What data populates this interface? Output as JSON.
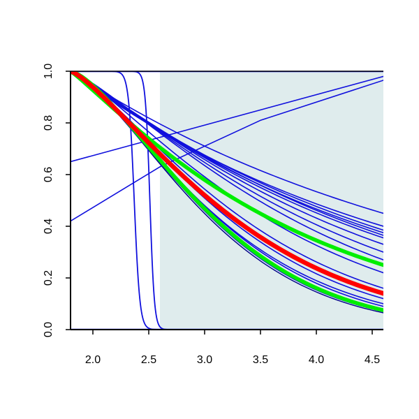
{
  "chart_data": {
    "type": "line",
    "title": "",
    "xlabel": "",
    "ylabel": "",
    "xlim": [
      1.8,
      4.6
    ],
    "ylim": [
      0.0,
      1.0
    ],
    "x_ticks": [
      2.0,
      2.5,
      3.0,
      3.5,
      4.0,
      4.5
    ],
    "x_tick_labels": [
      "2.0",
      "2.5",
      "3.0",
      "3.5",
      "4.0",
      "4.5"
    ],
    "y_ticks": [
      0.0,
      0.2,
      0.4,
      0.6,
      0.8,
      1.0
    ],
    "y_tick_labels": [
      "0.0",
      "0.2",
      "0.4",
      "0.6",
      "0.8",
      "1.0"
    ],
    "grid": false,
    "legend": "none",
    "shaded_region": {
      "x_from": 2.6,
      "x_to": 4.6,
      "color": "#dfeced"
    },
    "colors": {
      "curves": "#1010dd",
      "highlight": "#ff0000",
      "band": "#00ee00",
      "axes": "#000000"
    },
    "series": [
      {
        "kind": "decay",
        "end": 0.45,
        "shape": 1.0,
        "color": "#1010dd",
        "width": 1.6
      },
      {
        "kind": "decay",
        "end": 0.4,
        "shape": 1.0,
        "color": "#1010dd",
        "width": 1.6
      },
      {
        "kind": "decay",
        "end": 0.385,
        "shape": 1.05,
        "color": "#1010dd",
        "width": 1.6
      },
      {
        "kind": "decay",
        "end": 0.375,
        "shape": 1.05,
        "color": "#1010dd",
        "width": 1.6
      },
      {
        "kind": "decay",
        "end": 0.365,
        "shape": 1.1,
        "color": "#1010dd",
        "width": 1.6
      },
      {
        "kind": "decay",
        "end": 0.355,
        "shape": 1.1,
        "color": "#1010dd",
        "width": 1.6
      },
      {
        "kind": "decay",
        "end": 0.33,
        "shape": 1.15,
        "color": "#1010dd",
        "width": 1.6
      },
      {
        "kind": "decay",
        "end": 0.3,
        "shape": 1.2,
        "color": "#1010dd",
        "width": 1.6
      },
      {
        "kind": "decay",
        "end": 0.27,
        "shape": 1.25,
        "color": "#1010dd",
        "width": 1.6
      },
      {
        "kind": "decay",
        "end": 0.22,
        "shape": 1.25,
        "color": "#1010dd",
        "width": 1.6
      },
      {
        "kind": "decay",
        "end": 0.16,
        "shape": 1.3,
        "color": "#1010dd",
        "width": 1.6
      },
      {
        "kind": "decay",
        "end": 0.14,
        "shape": 1.3,
        "color": "#1010dd",
        "width": 1.6
      },
      {
        "kind": "decay",
        "end": 0.12,
        "shape": 1.35,
        "color": "#1010dd",
        "width": 1.6
      },
      {
        "kind": "decay",
        "end": 0.1,
        "shape": 1.35,
        "color": "#1010dd",
        "width": 1.6
      },
      {
        "kind": "decay",
        "end": 0.09,
        "shape": 1.4,
        "color": "#1010dd",
        "width": 1.6
      },
      {
        "kind": "decay",
        "end": 0.08,
        "shape": 1.4,
        "color": "#1010dd",
        "width": 1.6
      },
      {
        "kind": "decay",
        "end": 0.07,
        "shape": 1.45,
        "color": "#1010dd",
        "width": 1.6
      },
      {
        "kind": "decay",
        "end": 0.065,
        "shape": 1.45,
        "color": "#000088",
        "width": 1.4
      },
      {
        "kind": "points",
        "points": [
          [
            1.8,
            0.65
          ],
          [
            4.6,
            0.98
          ]
        ],
        "color": "#1010dd",
        "width": 1.6
      },
      {
        "kind": "points",
        "points": [
          [
            1.8,
            0.42
          ],
          [
            2.6,
            0.63
          ],
          [
            3.5,
            0.81
          ],
          [
            4.6,
            0.965
          ]
        ],
        "color": "#1010dd",
        "width": 1.6
      },
      {
        "kind": "step",
        "x0": 2.37,
        "k": 0.025,
        "color": "#1010dd",
        "width": 1.8
      },
      {
        "kind": "step",
        "x0": 2.51,
        "k": 0.02,
        "color": "#1010dd",
        "width": 1.8
      },
      {
        "kind": "points",
        "points": [
          [
            1.8,
            1.0
          ],
          [
            4.6,
            1.0
          ]
        ],
        "color": "#1010dd",
        "width": 2.4
      },
      {
        "kind": "points",
        "points": [
          [
            1.8,
            0.0
          ],
          [
            4.6,
            0.0
          ]
        ],
        "color": "#1010dd",
        "width": 2.4
      },
      {
        "kind": "decay",
        "end": 0.25,
        "shape": 1.1,
        "color": "#00ee00",
        "width": 5.5
      },
      {
        "kind": "decay",
        "end": 0.075,
        "shape": 1.45,
        "color": "#00ee00",
        "width": 5.5
      },
      {
        "kind": "decay",
        "end": 0.14,
        "shape": 1.3,
        "color": "#ff0000",
        "width": 6.5
      }
    ]
  }
}
